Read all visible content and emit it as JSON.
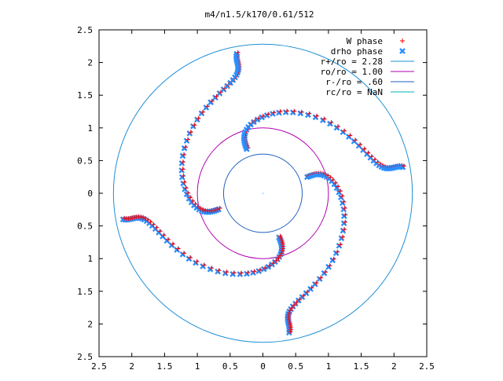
{
  "chart_data": {
    "type": "scatter",
    "title": "m4/n1.5/k170/0.61/512",
    "xlabel": "",
    "ylabel": "",
    "xlim": [
      -2.5,
      2.5
    ],
    "ylim": [
      -2.5,
      2.5
    ],
    "xtick_labels": [
      "2.5",
      "2",
      "1.5",
      "1",
      "0.5",
      "0",
      "0.5",
      "1",
      "1.5",
      "2",
      "2.5"
    ],
    "ytick_labels": [
      "2.5",
      "2",
      "1.5",
      "1",
      "0.5",
      "0",
      "0.5",
      "1",
      "1.5",
      "2",
      "2.5"
    ],
    "grid": false,
    "legend_position": "top-right",
    "series": [
      {
        "name": "W phase",
        "marker": "plus",
        "color": "#ff0000",
        "kind": "points"
      },
      {
        "name": "drho phase",
        "marker": "cross",
        "color": "#2a8fff",
        "kind": "points"
      },
      {
        "name": "r+/ro = 2.28",
        "color": "#1f8fd6",
        "kind": "circle",
        "radius": 2.28
      },
      {
        "name": "ro/ro = 1.00",
        "color": "#b000b0",
        "kind": "circle",
        "radius": 1.0
      },
      {
        "name": "r-/ro = .60",
        "color": "#1f5fbf",
        "kind": "circle",
        "radius": 0.6
      },
      {
        "name": "rc/ro = NaN",
        "color": "#00b0b0",
        "kind": "circle",
        "radius": null
      }
    ],
    "arm_count": 4
  }
}
